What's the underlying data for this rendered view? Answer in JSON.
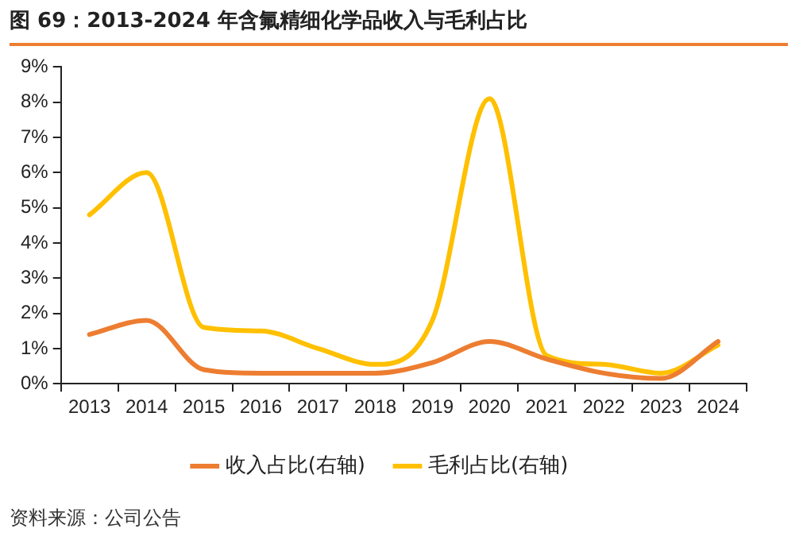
{
  "chart_data": {
    "type": "line",
    "title": "图 69：2013-2024 年含氟精细化学品收入与毛利占比",
    "categories": [
      "2013",
      "2014",
      "2015",
      "2016",
      "2017",
      "2018",
      "2019",
      "2020",
      "2021",
      "2022",
      "2023",
      "2024"
    ],
    "series": [
      {
        "name": "收入占比(右轴)",
        "color": "#ed7d31",
        "values": [
          1.4,
          1.8,
          0.4,
          0.3,
          0.3,
          0.3,
          0.6,
          1.2,
          0.7,
          0.3,
          0.15,
          1.2
        ]
      },
      {
        "name": "毛利占比(右轴)",
        "color": "#ffc000",
        "values": [
          4.8,
          6.0,
          1.6,
          1.5,
          1.0,
          0.55,
          1.8,
          8.1,
          0.8,
          0.55,
          0.3,
          1.1
        ]
      }
    ],
    "ylim": [
      0,
      9
    ],
    "yticks": [
      {
        "value": 0,
        "label": "0%"
      },
      {
        "value": 1,
        "label": "1%"
      },
      {
        "value": 2,
        "label": "2%"
      },
      {
        "value": 3,
        "label": "3%"
      },
      {
        "value": 4,
        "label": "4%"
      },
      {
        "value": 5,
        "label": "5%"
      },
      {
        "value": 6,
        "label": "6%"
      },
      {
        "value": 7,
        "label": "7%"
      },
      {
        "value": 8,
        "label": "8%"
      },
      {
        "value": 9,
        "label": "9%"
      }
    ],
    "grid": false,
    "legend": "bottom",
    "marker": "none",
    "line_style": "solid",
    "annotations": [
      "资料来源：公司公告"
    ]
  }
}
